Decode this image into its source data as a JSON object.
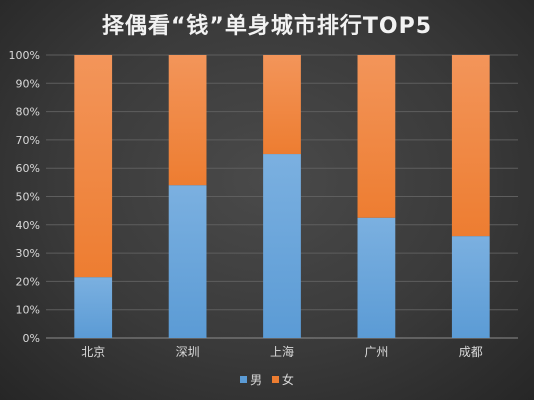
{
  "chart_data": {
    "type": "bar",
    "stacked": true,
    "title": "择偶看“钱”单身城市排行TOP5",
    "categories": [
      "北京",
      "深圳",
      "上海",
      "广州",
      "成都"
    ],
    "series": [
      {
        "name": "男",
        "values": [
          21.5,
          54,
          65,
          42.5,
          36
        ],
        "color": "#5b9bd5"
      },
      {
        "name": "女",
        "values": [
          78.5,
          46,
          35,
          57.5,
          64
        ],
        "color": "#ed7d31"
      }
    ],
    "yticks": [
      "0%",
      "10%",
      "20%",
      "30%",
      "40%",
      "50%",
      "60%",
      "70%",
      "80%",
      "90%",
      "100%"
    ],
    "ylim": [
      0,
      100
    ],
    "grid": true,
    "legend_position": "bottom"
  }
}
